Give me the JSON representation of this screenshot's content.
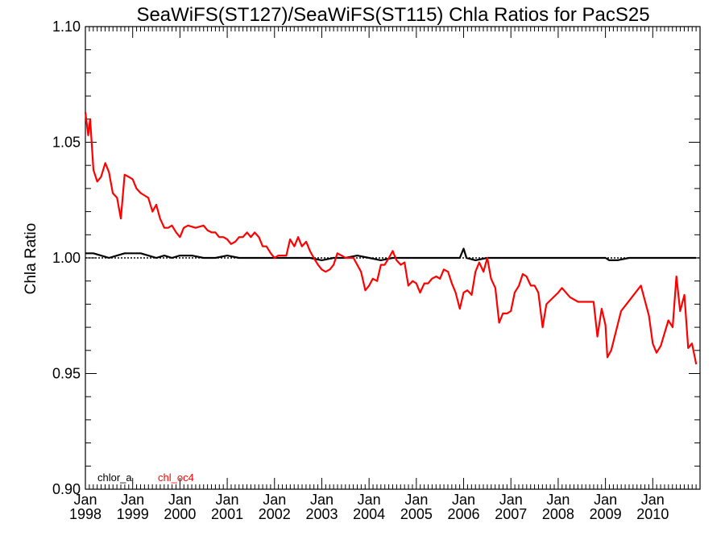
{
  "chart_data": {
    "type": "line",
    "title": "SeaWiFS(ST127)/SeaWiFS(ST115)  Chla Ratios for PacS25",
    "xlabel": "",
    "ylabel": "Chla Ratio",
    "ylim": [
      0.9,
      1.1
    ],
    "xlim": [
      "1998-01",
      "2010-12"
    ],
    "y_ticks": [
      "0.90",
      "0.95",
      "1.00",
      "1.05",
      "1.10"
    ],
    "x_ticks": [
      {
        "month": "Jan",
        "year": "1998"
      },
      {
        "month": "Jan",
        "year": "1999"
      },
      {
        "month": "Jan",
        "year": "2000"
      },
      {
        "month": "Jan",
        "year": "2001"
      },
      {
        "month": "Jan",
        "year": "2002"
      },
      {
        "month": "Jan",
        "year": "2003"
      },
      {
        "month": "Jan",
        "year": "2004"
      },
      {
        "month": "Jan",
        "year": "2005"
      },
      {
        "month": "Jan",
        "year": "2006"
      },
      {
        "month": "Jan",
        "year": "2007"
      },
      {
        "month": "Jan",
        "year": "2008"
      },
      {
        "month": "Jan",
        "year": "2009"
      },
      {
        "month": "Jan",
        "year": "2010"
      }
    ],
    "reference_line": 1.0,
    "grid": false,
    "legend_position": "bottom-left",
    "series": [
      {
        "name": "chlor_a",
        "color": "#000000",
        "points": [
          [
            1998.0,
            1.002
          ],
          [
            1998.17,
            1.002
          ],
          [
            1998.33,
            1.001
          ],
          [
            1998.5,
            1.0
          ],
          [
            1998.67,
            1.001
          ],
          [
            1998.83,
            1.002
          ],
          [
            1999.0,
            1.002
          ],
          [
            1999.17,
            1.002
          ],
          [
            1999.33,
            1.001
          ],
          [
            1999.5,
            1.0
          ],
          [
            1999.67,
            1.001
          ],
          [
            1999.83,
            1.0
          ],
          [
            2000.0,
            1.001
          ],
          [
            2000.25,
            1.001
          ],
          [
            2000.5,
            1.0
          ],
          [
            2000.75,
            1.0
          ],
          [
            2001.0,
            1.001
          ],
          [
            2001.25,
            1.0
          ],
          [
            2001.5,
            1.0
          ],
          [
            2001.75,
            1.0
          ],
          [
            2002.0,
            1.0
          ],
          [
            2002.25,
            1.0
          ],
          [
            2002.5,
            1.0
          ],
          [
            2002.75,
            1.0
          ],
          [
            2003.0,
            0.999
          ],
          [
            2003.25,
            1.0
          ],
          [
            2003.5,
            1.0
          ],
          [
            2003.75,
            1.001
          ],
          [
            2004.0,
            1.0
          ],
          [
            2004.25,
            0.999
          ],
          [
            2004.5,
            1.0
          ],
          [
            2004.75,
            1.0
          ],
          [
            2005.0,
            1.0
          ],
          [
            2005.25,
            1.0
          ],
          [
            2005.5,
            1.0
          ],
          [
            2005.75,
            1.0
          ],
          [
            2005.92,
            1.0
          ],
          [
            2006.0,
            1.004
          ],
          [
            2006.06,
            1.0
          ],
          [
            2006.25,
            0.999
          ],
          [
            2006.5,
            1.0
          ],
          [
            2006.75,
            1.0
          ],
          [
            2007.0,
            1.0
          ],
          [
            2007.25,
            1.0
          ],
          [
            2007.5,
            1.0
          ],
          [
            2007.75,
            1.0
          ],
          [
            2008.0,
            1.0
          ],
          [
            2008.25,
            1.0
          ],
          [
            2008.5,
            1.0
          ],
          [
            2008.75,
            1.0
          ],
          [
            2009.0,
            1.0
          ],
          [
            2009.08,
            0.999
          ],
          [
            2009.25,
            0.999
          ],
          [
            2009.5,
            1.0
          ],
          [
            2009.75,
            1.0
          ],
          [
            2010.0,
            1.0
          ],
          [
            2010.25,
            1.0
          ],
          [
            2010.5,
            1.0
          ],
          [
            2010.75,
            1.0
          ],
          [
            2010.92,
            1.0
          ]
        ]
      },
      {
        "name": "chl_oc4",
        "color": "#ff0000",
        "points": [
          [
            1998.0,
            1.063
          ],
          [
            1998.06,
            1.053
          ],
          [
            1998.1,
            1.06
          ],
          [
            1998.17,
            1.038
          ],
          [
            1998.25,
            1.033
          ],
          [
            1998.33,
            1.035
          ],
          [
            1998.42,
            1.041
          ],
          [
            1998.5,
            1.037
          ],
          [
            1998.58,
            1.028
          ],
          [
            1998.67,
            1.026
          ],
          [
            1998.75,
            1.017
          ],
          [
            1998.83,
            1.036
          ],
          [
            1998.92,
            1.035
          ],
          [
            1999.0,
            1.034
          ],
          [
            1999.08,
            1.03
          ],
          [
            1999.17,
            1.028
          ],
          [
            1999.25,
            1.027
          ],
          [
            1999.33,
            1.026
          ],
          [
            1999.42,
            1.02
          ],
          [
            1999.5,
            1.023
          ],
          [
            1999.58,
            1.017
          ],
          [
            1999.67,
            1.013
          ],
          [
            1999.75,
            1.013
          ],
          [
            1999.83,
            1.014
          ],
          [
            1999.92,
            1.011
          ],
          [
            2000.0,
            1.009
          ],
          [
            2000.08,
            1.013
          ],
          [
            2000.17,
            1.014
          ],
          [
            2000.33,
            1.013
          ],
          [
            2000.5,
            1.014
          ],
          [
            2000.58,
            1.012
          ],
          [
            2000.67,
            1.011
          ],
          [
            2000.75,
            1.011
          ],
          [
            2000.83,
            1.009
          ],
          [
            2000.92,
            1.009
          ],
          [
            2001.0,
            1.008
          ],
          [
            2001.08,
            1.006
          ],
          [
            2001.17,
            1.007
          ],
          [
            2001.25,
            1.009
          ],
          [
            2001.33,
            1.009
          ],
          [
            2001.42,
            1.011
          ],
          [
            2001.5,
            1.009
          ],
          [
            2001.58,
            1.011
          ],
          [
            2001.67,
            1.009
          ],
          [
            2001.75,
            1.005
          ],
          [
            2001.83,
            1.005
          ],
          [
            2001.92,
            1.002
          ],
          [
            2002.0,
            1.0
          ],
          [
            2002.08,
            1.001
          ],
          [
            2002.25,
            1.001
          ],
          [
            2002.33,
            1.008
          ],
          [
            2002.42,
            1.005
          ],
          [
            2002.5,
            1.009
          ],
          [
            2002.58,
            1.005
          ],
          [
            2002.67,
            1.007
          ],
          [
            2002.75,
            1.003
          ],
          [
            2002.83,
            1.0
          ],
          [
            2002.92,
            0.997
          ],
          [
            2003.0,
            0.995
          ],
          [
            2003.08,
            0.994
          ],
          [
            2003.17,
            0.995
          ],
          [
            2003.25,
            0.997
          ],
          [
            2003.33,
            1.002
          ],
          [
            2003.42,
            1.001
          ],
          [
            2003.5,
            1.0
          ],
          [
            2003.67,
            1.0
          ],
          [
            2003.75,
            0.997
          ],
          [
            2003.83,
            0.994
          ],
          [
            2003.92,
            0.986
          ],
          [
            2004.0,
            0.988
          ],
          [
            2004.08,
            0.991
          ],
          [
            2004.17,
            0.99
          ],
          [
            2004.25,
            0.997
          ],
          [
            2004.33,
            0.997
          ],
          [
            2004.42,
            1.0
          ],
          [
            2004.5,
            1.003
          ],
          [
            2004.58,
            0.999
          ],
          [
            2004.67,
            0.997
          ],
          [
            2004.75,
            0.998
          ],
          [
            2004.83,
            0.988
          ],
          [
            2004.92,
            0.99
          ],
          [
            2005.0,
            0.989
          ],
          [
            2005.08,
            0.985
          ],
          [
            2005.17,
            0.989
          ],
          [
            2005.25,
            0.989
          ],
          [
            2005.33,
            0.991
          ],
          [
            2005.42,
            0.992
          ],
          [
            2005.5,
            0.991
          ],
          [
            2005.58,
            0.995
          ],
          [
            2005.67,
            0.994
          ],
          [
            2005.75,
            0.989
          ],
          [
            2005.83,
            0.985
          ],
          [
            2005.92,
            0.978
          ],
          [
            2006.0,
            0.985
          ],
          [
            2006.08,
            0.986
          ],
          [
            2006.17,
            0.984
          ],
          [
            2006.25,
            0.994
          ],
          [
            2006.33,
            0.998
          ],
          [
            2006.42,
            0.994
          ],
          [
            2006.5,
            1.0
          ],
          [
            2006.58,
            0.991
          ],
          [
            2006.67,
            0.987
          ],
          [
            2006.75,
            0.972
          ],
          [
            2006.83,
            0.976
          ],
          [
            2006.92,
            0.976
          ],
          [
            2007.0,
            0.977
          ],
          [
            2007.08,
            0.985
          ],
          [
            2007.17,
            0.988
          ],
          [
            2007.25,
            0.993
          ],
          [
            2007.33,
            0.992
          ],
          [
            2007.42,
            0.988
          ],
          [
            2007.5,
            0.988
          ],
          [
            2007.58,
            0.985
          ],
          [
            2007.67,
            0.97
          ],
          [
            2007.75,
            0.98
          ],
          [
            2008.0,
            0.985
          ],
          [
            2008.08,
            0.987
          ],
          [
            2008.25,
            0.983
          ],
          [
            2008.42,
            0.981
          ],
          [
            2008.75,
            0.981
          ],
          [
            2008.83,
            0.966
          ],
          [
            2008.92,
            0.978
          ],
          [
            2009.0,
            0.971
          ],
          [
            2009.04,
            0.957
          ],
          [
            2009.12,
            0.96
          ],
          [
            2009.33,
            0.977
          ],
          [
            2009.75,
            0.988
          ],
          [
            2009.92,
            0.975
          ],
          [
            2010.0,
            0.963
          ],
          [
            2010.08,
            0.959
          ],
          [
            2010.17,
            0.962
          ],
          [
            2010.33,
            0.973
          ],
          [
            2010.42,
            0.97
          ],
          [
            2010.5,
            0.992
          ],
          [
            2010.58,
            0.977
          ],
          [
            2010.67,
            0.984
          ],
          [
            2010.75,
            0.961
          ],
          [
            2010.83,
            0.963
          ],
          [
            2010.92,
            0.954
          ]
        ]
      }
    ]
  }
}
